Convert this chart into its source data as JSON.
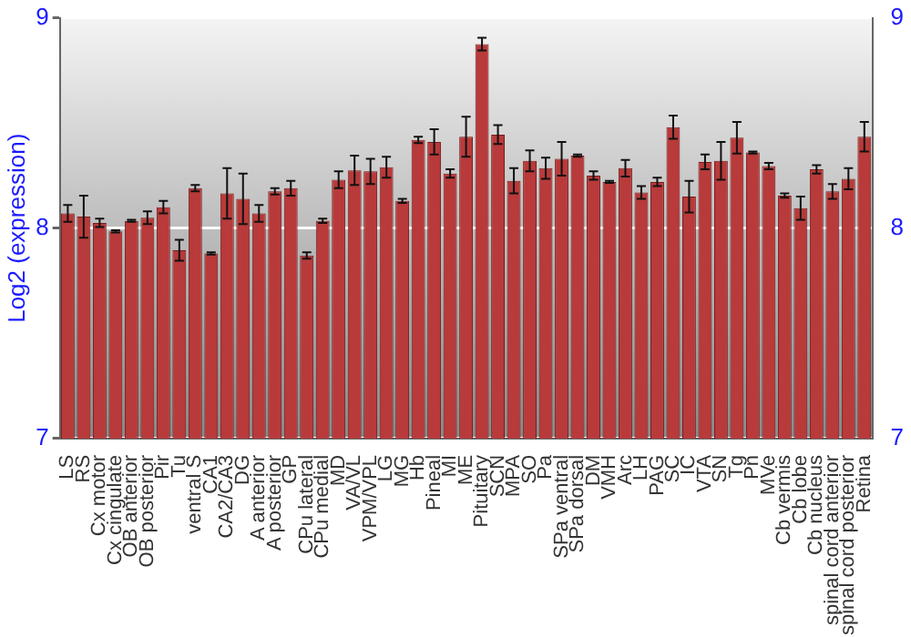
{
  "chart_data": {
    "type": "bar",
    "ylabel": "Log2 (expression)",
    "categories": [
      "LS",
      "RS",
      "Cx motor",
      "Cx cingulate",
      "OB anterior",
      "OB posterior",
      "Pir",
      "Tu",
      "ventral S",
      "CA1",
      "CA2/CA3",
      "DG",
      "A anterior",
      "A posterior",
      "GP",
      "CPu lateral",
      "CPu medial",
      "MD",
      "VA/VL",
      "VPM/VPL",
      "LG",
      "MG",
      "Hb",
      "Pineal",
      "MI",
      "ME",
      "Pituitary",
      "SCN",
      "MPA",
      "SO",
      "Pa",
      "SPa ventral",
      "SPa dorsal",
      "DM",
      "VMH",
      "Arc",
      "LH",
      "PAG",
      "SC",
      "IC",
      "VTA",
      "SN",
      "Tg",
      "Pn",
      "MVe",
      "Cb vermis",
      "Cb lobe",
      "Cb nucleus",
      "spinal cord anterior",
      "spinal cord posterior",
      "Retina"
    ],
    "values": [
      8.07,
      8.055,
      8.025,
      7.985,
      8.035,
      8.05,
      8.1,
      7.895,
      8.19,
      7.88,
      8.165,
      8.14,
      8.07,
      8.175,
      8.19,
      7.87,
      8.035,
      8.23,
      8.275,
      8.27,
      8.29,
      8.13,
      8.42,
      8.41,
      8.26,
      8.435,
      8.875,
      8.445,
      8.225,
      8.32,
      8.285,
      8.33,
      8.345,
      8.25,
      8.22,
      8.285,
      8.17,
      8.22,
      8.48,
      8.15,
      8.315,
      8.32,
      8.43,
      8.36,
      8.295,
      8.155,
      8.095,
      8.28,
      8.175,
      8.235,
      8.435
    ],
    "errors": [
      0.04,
      0.1,
      0.02,
      0.005,
      0.005,
      0.03,
      0.03,
      0.05,
      0.015,
      0.005,
      0.12,
      0.12,
      0.04,
      0.015,
      0.035,
      0.015,
      0.01,
      0.04,
      0.07,
      0.06,
      0.05,
      0.01,
      0.015,
      0.06,
      0.02,
      0.095,
      0.03,
      0.045,
      0.06,
      0.05,
      0.05,
      0.08,
      0.005,
      0.02,
      0.005,
      0.04,
      0.03,
      0.02,
      0.055,
      0.075,
      0.035,
      0.09,
      0.075,
      0.005,
      0.015,
      0.01,
      0.055,
      0.02,
      0.035,
      0.05,
      0.07
    ],
    "color": "#b83a3a",
    "ylim": [
      7,
      9
    ],
    "yticks": [
      7,
      8,
      9
    ],
    "y2lim": [
      7,
      9
    ],
    "y2ticks": [
      7,
      8,
      9
    ],
    "grid": "y",
    "legend": false
  }
}
